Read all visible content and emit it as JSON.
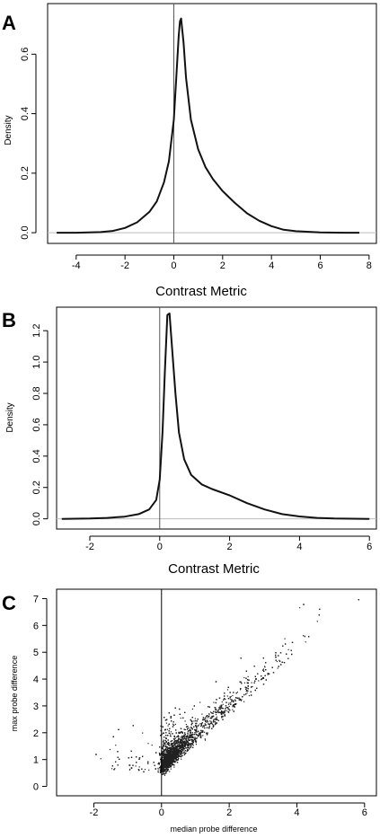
{
  "chart_data": [
    {
      "panel": "A",
      "type": "line",
      "title": "",
      "xlabel": "Contrast Metric",
      "ylabel": "Density",
      "xlim": [
        -5,
        8
      ],
      "ylim": [
        0,
        0.74
      ],
      "xticks": [
        -4,
        -2,
        0,
        2,
        4,
        6,
        8
      ],
      "yticks": [
        0.0,
        0.2,
        0.4,
        0.6
      ],
      "vline_x": 0,
      "hline_y": 0,
      "grid": false,
      "series": [
        {
          "x": [
            -4.8,
            -4,
            -3,
            -2.5,
            -2,
            -1.5,
            -1,
            -0.7,
            -0.4,
            -0.2,
            0,
            0.1,
            0.2,
            0.25,
            0.3,
            0.4,
            0.5,
            0.7,
            1,
            1.3,
            1.6,
            2,
            2.5,
            3,
            3.5,
            4,
            4.5,
            5,
            6,
            7,
            7.6
          ],
          "y": [
            0.0,
            0.0,
            0.002,
            0.006,
            0.016,
            0.035,
            0.07,
            0.105,
            0.17,
            0.24,
            0.38,
            0.52,
            0.66,
            0.71,
            0.72,
            0.64,
            0.52,
            0.38,
            0.28,
            0.22,
            0.18,
            0.14,
            0.1,
            0.065,
            0.04,
            0.022,
            0.01,
            0.005,
            0.001,
            0.0,
            0.0
          ]
        }
      ]
    },
    {
      "panel": "B",
      "type": "line",
      "title": "",
      "xlabel": "Contrast Metric",
      "ylabel": "Density",
      "xlim": [
        -2.8,
        6
      ],
      "ylim": [
        0,
        1.34
      ],
      "xticks": [
        -2,
        0,
        2,
        4,
        6
      ],
      "yticks": [
        0.0,
        0.2,
        0.4,
        0.6,
        0.8,
        1.0,
        1.2
      ],
      "vline_x": 0,
      "hline_y": 0,
      "grid": false,
      "series": [
        {
          "x": [
            -2.8,
            -2,
            -1.5,
            -1,
            -0.6,
            -0.3,
            -0.1,
            0,
            0.08,
            0.15,
            0.22,
            0.28,
            0.35,
            0.45,
            0.55,
            0.7,
            0.9,
            1.2,
            1.5,
            2,
            2.5,
            3,
            3.5,
            4,
            4.5,
            5,
            6
          ],
          "y": [
            0.0,
            0.002,
            0.006,
            0.014,
            0.03,
            0.06,
            0.12,
            0.25,
            0.55,
            0.95,
            1.3,
            1.31,
            1.1,
            0.8,
            0.55,
            0.38,
            0.28,
            0.22,
            0.19,
            0.15,
            0.1,
            0.06,
            0.03,
            0.015,
            0.006,
            0.002,
            0.0
          ]
        }
      ]
    },
    {
      "panel": "C",
      "type": "scatter",
      "title": "",
      "xlabel": "median probe difference",
      "ylabel": "max probe difference",
      "xlim": [
        -3,
        6.3
      ],
      "ylim": [
        -0.3,
        7.3
      ],
      "xticks": [
        -2,
        0,
        2,
        4,
        6
      ],
      "yticks": [
        0,
        1,
        2,
        3,
        4,
        5,
        6,
        7
      ],
      "vline_x": 0,
      "grid": false,
      "point_density": "dense diagonal cloud from about (0, 0.5) to (5, 6.5)"
    }
  ],
  "panels": {
    "a": {
      "letter": "A"
    },
    "b": {
      "letter": "B"
    },
    "c": {
      "letter": "C"
    }
  }
}
